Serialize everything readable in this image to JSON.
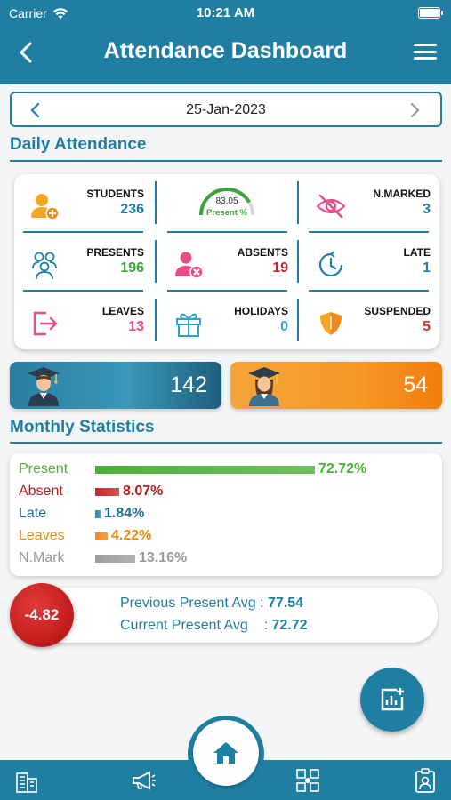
{
  "status_bar": {
    "carrier": "Carrier",
    "time": "10:21 AM"
  },
  "header": {
    "title": "Attendance Dashboard"
  },
  "date_selector": {
    "date": "25-Jan-2023"
  },
  "daily": {
    "section_title": "Daily Attendance",
    "students": {
      "label": "STUDENTS",
      "value": "236"
    },
    "gauge": {
      "value": "83.05",
      "label": "Present %",
      "fraction": 0.8305
    },
    "not_marked": {
      "label": "N.MARKED",
      "value": "3"
    },
    "presents": {
      "label": "PRESENTS",
      "value": "196"
    },
    "absents": {
      "label": "ABSENTS",
      "value": "19"
    },
    "late": {
      "label": "LATE",
      "value": "1"
    },
    "leaves": {
      "label": "LEAVES",
      "value": "13"
    },
    "holidays": {
      "label": "HOLIDAYS",
      "value": "0"
    },
    "suspended": {
      "label": "SUSPENDED",
      "value": "5"
    }
  },
  "gender": {
    "male": "142",
    "female": "54"
  },
  "monthly": {
    "section_title": "Monthly Statistics",
    "rows": [
      {
        "label": "Present",
        "pct": "72.72%",
        "fraction": 0.7272,
        "color": "#4caf3a",
        "label_color": "#4caf3a"
      },
      {
        "label": "Absent",
        "pct": "8.07%",
        "fraction": 0.0807,
        "color": "#c62828",
        "label_color": "#b71c1c"
      },
      {
        "label": "Late",
        "pct": "1.84%",
        "fraction": 0.0184,
        "color": "#2a87b8",
        "label_color": "#1f6f9a"
      },
      {
        "label": "Leaves",
        "pct": "4.22%",
        "fraction": 0.0422,
        "color": "#f08a1c",
        "label_color": "#ef8a10"
      },
      {
        "label": "N.Mark",
        "pct": "13.16%",
        "fraction": 0.1316,
        "color": "#9e9e9e",
        "label_color": "#9a9a9a"
      }
    ]
  },
  "averages": {
    "difference": "-4.82",
    "previous_label": "Previous Present Avg",
    "previous_value": "77.54",
    "current_label": "Current Present Avg",
    "current_value": "72.72"
  },
  "colors": {
    "primary": "#1f7fa3",
    "present_green": "#3ba53b",
    "absent_red": "#c62828",
    "late_blue": "#1f7fa3",
    "leave_pink": "#e84c8b",
    "suspended_red": "#d32f2f"
  }
}
